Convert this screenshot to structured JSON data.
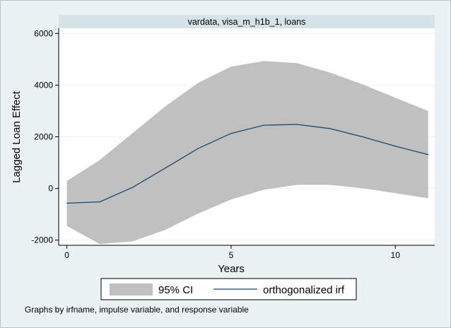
{
  "chart_data": {
    "type": "line",
    "panel_title": "vardata, visa_m_h1b_1, loans",
    "xlabel": "Years",
    "ylabel": "Lagged Loan Effect",
    "xlim": [
      -0.25,
      11.2
    ],
    "ylim": [
      -2200,
      6200
    ],
    "x_ticks": [
      0,
      5,
      10
    ],
    "y_ticks": [
      -2000,
      0,
      2000,
      4000,
      6000
    ],
    "grid": true,
    "legend_position": "bottom",
    "x": [
      0,
      1,
      2,
      3,
      4,
      5,
      6,
      7,
      8,
      9,
      10,
      11
    ],
    "series": [
      {
        "name": "orthogonalized irf",
        "kind": "line",
        "color": "#1a476f",
        "values": [
          -570,
          -520,
          40,
          790,
          1550,
          2130,
          2450,
          2480,
          2320,
          2000,
          1640,
          1310
        ]
      },
      {
        "name": "95% CI",
        "kind": "band",
        "color": "#c0c0c0",
        "lower": [
          -1450,
          -2150,
          -2050,
          -1600,
          -970,
          -430,
          -50,
          140,
          140,
          10,
          -180,
          -380
        ],
        "upper": [
          290,
          1100,
          2140,
          3180,
          4090,
          4720,
          4930,
          4850,
          4490,
          4030,
          3510,
          3000
        ]
      }
    ]
  },
  "legend": {
    "items": [
      "95% CI",
      "orthogonalized irf"
    ]
  },
  "footnote": "Graphs by irfname, impulse variable, and response variable"
}
